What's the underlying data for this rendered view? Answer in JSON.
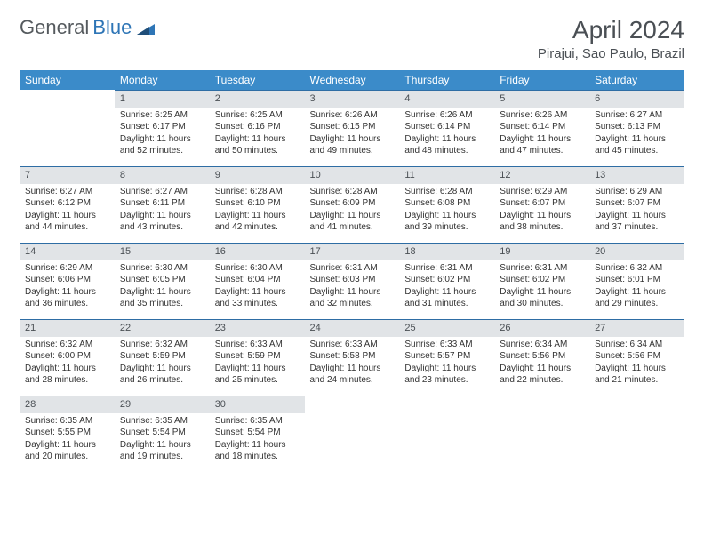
{
  "logo": {
    "word1": "General",
    "word2": "Blue"
  },
  "title": "April 2024",
  "location": "Pirajui, Sao Paulo, Brazil",
  "colors": {
    "header_bg": "#3b8bc9",
    "header_text": "#ffffff",
    "daynum_bg": "#e1e4e7",
    "daynum_border": "#2e6da4",
    "body_text": "#333333",
    "title_text": "#4a4f54",
    "logo_gray": "#555a5e",
    "logo_blue": "#2e75b6"
  },
  "weekdays": [
    "Sunday",
    "Monday",
    "Tuesday",
    "Wednesday",
    "Thursday",
    "Friday",
    "Saturday"
  ],
  "layout": {
    "first_weekday_index": 1,
    "days_in_month": 30
  },
  "days": {
    "1": {
      "sunrise": "6:25 AM",
      "sunset": "6:17 PM",
      "daylight": "11 hours and 52 minutes."
    },
    "2": {
      "sunrise": "6:25 AM",
      "sunset": "6:16 PM",
      "daylight": "11 hours and 50 minutes."
    },
    "3": {
      "sunrise": "6:26 AM",
      "sunset": "6:15 PM",
      "daylight": "11 hours and 49 minutes."
    },
    "4": {
      "sunrise": "6:26 AM",
      "sunset": "6:14 PM",
      "daylight": "11 hours and 48 minutes."
    },
    "5": {
      "sunrise": "6:26 AM",
      "sunset": "6:14 PM",
      "daylight": "11 hours and 47 minutes."
    },
    "6": {
      "sunrise": "6:27 AM",
      "sunset": "6:13 PM",
      "daylight": "11 hours and 45 minutes."
    },
    "7": {
      "sunrise": "6:27 AM",
      "sunset": "6:12 PM",
      "daylight": "11 hours and 44 minutes."
    },
    "8": {
      "sunrise": "6:27 AM",
      "sunset": "6:11 PM",
      "daylight": "11 hours and 43 minutes."
    },
    "9": {
      "sunrise": "6:28 AM",
      "sunset": "6:10 PM",
      "daylight": "11 hours and 42 minutes."
    },
    "10": {
      "sunrise": "6:28 AM",
      "sunset": "6:09 PM",
      "daylight": "11 hours and 41 minutes."
    },
    "11": {
      "sunrise": "6:28 AM",
      "sunset": "6:08 PM",
      "daylight": "11 hours and 39 minutes."
    },
    "12": {
      "sunrise": "6:29 AM",
      "sunset": "6:07 PM",
      "daylight": "11 hours and 38 minutes."
    },
    "13": {
      "sunrise": "6:29 AM",
      "sunset": "6:07 PM",
      "daylight": "11 hours and 37 minutes."
    },
    "14": {
      "sunrise": "6:29 AM",
      "sunset": "6:06 PM",
      "daylight": "11 hours and 36 minutes."
    },
    "15": {
      "sunrise": "6:30 AM",
      "sunset": "6:05 PM",
      "daylight": "11 hours and 35 minutes."
    },
    "16": {
      "sunrise": "6:30 AM",
      "sunset": "6:04 PM",
      "daylight": "11 hours and 33 minutes."
    },
    "17": {
      "sunrise": "6:31 AM",
      "sunset": "6:03 PM",
      "daylight": "11 hours and 32 minutes."
    },
    "18": {
      "sunrise": "6:31 AM",
      "sunset": "6:02 PM",
      "daylight": "11 hours and 31 minutes."
    },
    "19": {
      "sunrise": "6:31 AM",
      "sunset": "6:02 PM",
      "daylight": "11 hours and 30 minutes."
    },
    "20": {
      "sunrise": "6:32 AM",
      "sunset": "6:01 PM",
      "daylight": "11 hours and 29 minutes."
    },
    "21": {
      "sunrise": "6:32 AM",
      "sunset": "6:00 PM",
      "daylight": "11 hours and 28 minutes."
    },
    "22": {
      "sunrise": "6:32 AM",
      "sunset": "5:59 PM",
      "daylight": "11 hours and 26 minutes."
    },
    "23": {
      "sunrise": "6:33 AM",
      "sunset": "5:59 PM",
      "daylight": "11 hours and 25 minutes."
    },
    "24": {
      "sunrise": "6:33 AM",
      "sunset": "5:58 PM",
      "daylight": "11 hours and 24 minutes."
    },
    "25": {
      "sunrise": "6:33 AM",
      "sunset": "5:57 PM",
      "daylight": "11 hours and 23 minutes."
    },
    "26": {
      "sunrise": "6:34 AM",
      "sunset": "5:56 PM",
      "daylight": "11 hours and 22 minutes."
    },
    "27": {
      "sunrise": "6:34 AM",
      "sunset": "5:56 PM",
      "daylight": "11 hours and 21 minutes."
    },
    "28": {
      "sunrise": "6:35 AM",
      "sunset": "5:55 PM",
      "daylight": "11 hours and 20 minutes."
    },
    "29": {
      "sunrise": "6:35 AM",
      "sunset": "5:54 PM",
      "daylight": "11 hours and 19 minutes."
    },
    "30": {
      "sunrise": "6:35 AM",
      "sunset": "5:54 PM",
      "daylight": "11 hours and 18 minutes."
    }
  },
  "labels": {
    "sunrise": "Sunrise: ",
    "sunset": "Sunset: ",
    "daylight": "Daylight: "
  }
}
